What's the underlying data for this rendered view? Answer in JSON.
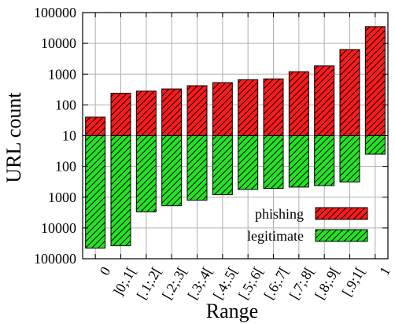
{
  "chart_data": {
    "type": "bar",
    "title": "",
    "xlabel": "Range",
    "ylabel": "URL count",
    "y_scale": "log",
    "ylim_upper": [
      10,
      100000
    ],
    "ylim_lower": [
      10,
      100000
    ],
    "y_ticks": [
      "100000",
      "10000",
      "1000",
      "100",
      "10",
      "100",
      "1000",
      "10000",
      "100000"
    ],
    "grid": true,
    "legend_position": "bottom-right",
    "categories": [
      "0",
      "]0;.1[",
      "[.1;.2[",
      "[.2;.3[",
      "[.3;.4[",
      "[.4;.5[",
      "[.5;.6[",
      "[.6;.7[",
      "[.7;.8[",
      "[.8;.9[",
      "[.9;1[",
      "1"
    ],
    "series": [
      {
        "name": "phishing",
        "direction": "up",
        "color": "#ff0000",
        "values": [
          40,
          240,
          280,
          330,
          420,
          530,
          660,
          700,
          1200,
          1850,
          6300,
          35000
        ]
      },
      {
        "name": "legitimate",
        "direction": "down",
        "color": "#00e000",
        "values": [
          45000,
          38000,
          3000,
          1900,
          1250,
          830,
          560,
          520,
          470,
          420,
          320,
          40
        ]
      }
    ]
  }
}
